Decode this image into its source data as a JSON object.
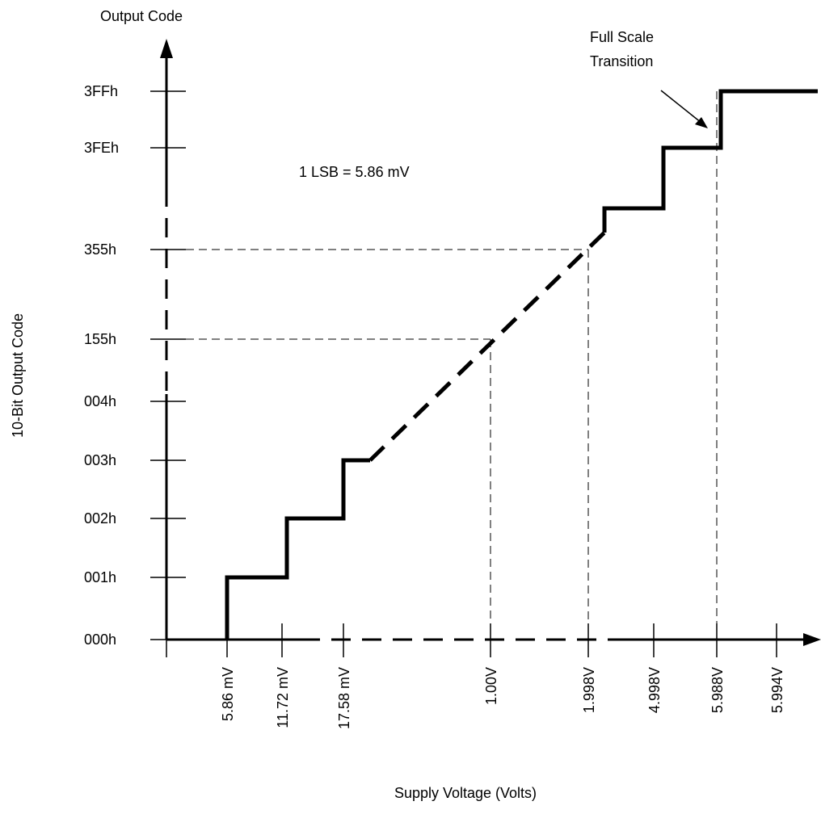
{
  "y_axis": {
    "top_label": "Output Code",
    "side_label": "10-Bit Output Code",
    "ticks": [
      "3FFh",
      "3FEh",
      "355h",
      "155h",
      "004h",
      "003h",
      "002h",
      "001h",
      "000h"
    ]
  },
  "x_axis": {
    "label": "Supply Voltage (Volts)",
    "ticks": [
      "5.86 mV",
      "11.72 mV",
      "17.58 mV",
      "1.00V",
      "1.998V",
      "4.998V",
      "5.988V",
      "5.994V"
    ]
  },
  "annotations": {
    "lsb": "1 LSB = 5.86 mV",
    "full_scale_line1": "Full Scale",
    "full_scale_line2": "Transition"
  }
}
